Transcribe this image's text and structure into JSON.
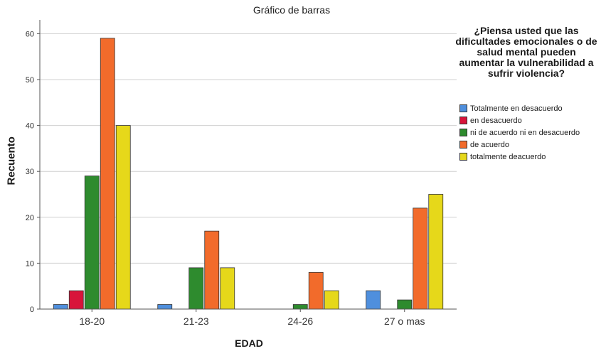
{
  "chart_data": {
    "type": "bar",
    "title": "Gráfico de barras",
    "xlabel": "EDAD",
    "ylabel": "Recuento",
    "ylim": [
      0,
      63
    ],
    "yticks": [
      0,
      10,
      20,
      30,
      40,
      50,
      60
    ],
    "categories": [
      "18-20",
      "21-23",
      "24-26",
      "27 o mas"
    ],
    "legend_title": "¿Piensa usted que las dificultades emocionales o de salud mental pueden aumentar la vulnerabilidad a sufrir violencia?",
    "legend_position": "right",
    "grid": true,
    "series": [
      {
        "name": "Totalmente en desacuerdo",
        "color": "#4f8fdd",
        "values": [
          1,
          1,
          0,
          4
        ]
      },
      {
        "name": "en desacuerdo",
        "color": "#d8143a",
        "values": [
          4,
          0,
          0,
          0
        ]
      },
      {
        "name": "ni de acuerdo ni en desacuerdo",
        "color": "#2e8b2e",
        "values": [
          29,
          9,
          1,
          2
        ]
      },
      {
        "name": "de acuerdo",
        "color": "#f26b2b",
        "values": [
          59,
          17,
          8,
          22
        ]
      },
      {
        "name": "totalmente deacuerdo",
        "color": "#e6d81a",
        "values": [
          40,
          9,
          4,
          25
        ]
      }
    ]
  }
}
